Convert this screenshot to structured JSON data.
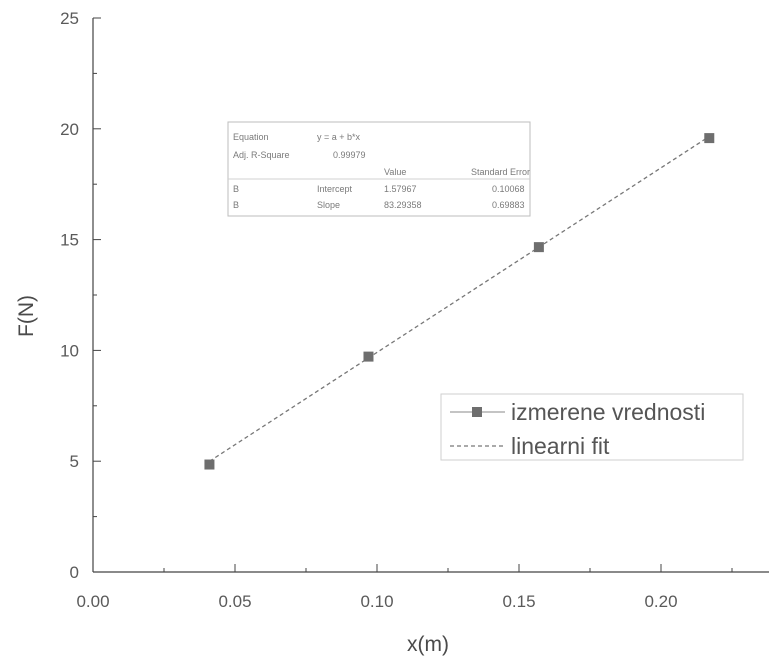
{
  "chart_data": {
    "type": "scatter",
    "title": "",
    "xlabel": "x(m)",
    "ylabel": "F(N)",
    "xlim": [
      0,
      0.24
    ],
    "ylim": [
      0,
      25
    ],
    "x_ticks": [
      "0.00",
      "0.05",
      "0.10",
      "0.15",
      "0.20"
    ],
    "y_ticks": [
      "0",
      "5",
      "10",
      "15",
      "20",
      "25"
    ],
    "grid": false,
    "legend_position": "right",
    "series": [
      {
        "name": "izmerene vrednosti",
        "style": "square-markers",
        "color": "#6e6e6e",
        "x": [
          0.041,
          0.097,
          0.157,
          0.217
        ],
        "y": [
          4.85,
          9.72,
          14.66,
          19.58
        ]
      },
      {
        "name": "linearni fit",
        "style": "dashed-line",
        "color": "#777777",
        "intercept": 1.57967,
        "slope": 83.29358,
        "x_range": [
          0.041,
          0.217
        ]
      }
    ],
    "fit_table": {
      "equation_label": "Equation",
      "equation": "y = a + b*x",
      "r_square_label": "Adj. R-Square",
      "r_square": "0.99979",
      "header_value": "Value",
      "header_error": "Standard Error",
      "rows": [
        {
          "col1": "B",
          "param": "Intercept",
          "value": "1.57967",
          "error": "0.10068"
        },
        {
          "col1": "B",
          "param": "Slope",
          "value": "83.29358",
          "error": "0.69883"
        }
      ]
    }
  }
}
